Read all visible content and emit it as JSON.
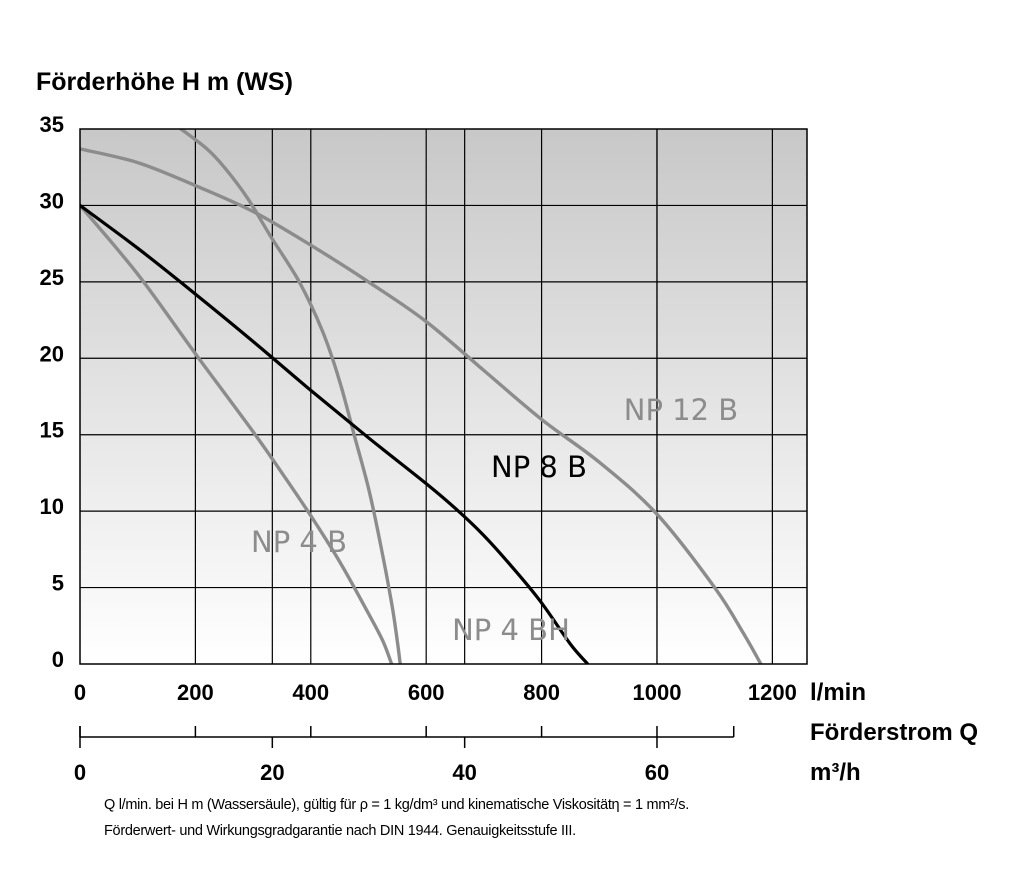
{
  "chart_data": {
    "type": "line",
    "title": "Förderhöhe H m (WS)",
    "ylabel": "Förderhöhe H m (WS)",
    "ylim": [
      0,
      35
    ],
    "yticks": [
      "0",
      "5",
      "10",
      "15",
      "20",
      "25",
      "30",
      "35"
    ],
    "xlim": [
      0,
      1260
    ],
    "xticks": [
      {
        "value": 0,
        "label": "0"
      },
      {
        "value": 200,
        "label": "200"
      },
      {
        "value": 400,
        "label": "400"
      },
      {
        "value": 600,
        "label": "600"
      },
      {
        "value": 800,
        "label": "800"
      },
      {
        "value": 1000,
        "label": "1000"
      },
      {
        "value": 1200,
        "label": "1200"
      }
    ],
    "xunit": "l/min",
    "xlabel": "Förderstrom Q",
    "x2unit": "m³/h",
    "x2ticks": [
      {
        "value": 0,
        "label": "0"
      },
      {
        "value": 20,
        "label": "20"
      },
      {
        "value": 40,
        "label": "40"
      },
      {
        "value": 60,
        "label": "60"
      }
    ],
    "grid": true,
    "series": [
      {
        "name": "NP 4 B",
        "color": "#8c8c8c",
        "x": [
          0,
          100,
          200,
          300,
          350,
          400,
          450,
          500,
          525,
          540
        ],
        "y": [
          30,
          25.5,
          20.3,
          15.2,
          12.5,
          9.7,
          6.7,
          3.3,
          1.5,
          0
        ]
      },
      {
        "name": "NP 4 BH",
        "color": "#8c8c8c",
        "x": [
          175,
          220,
          250,
          290,
          330,
          380,
          420,
          450,
          475,
          500,
          520,
          540,
          550,
          555
        ],
        "y": [
          35,
          33.7,
          32.5,
          30.5,
          28,
          25,
          21.8,
          18.5,
          15,
          11.5,
          8,
          4,
          1.5,
          0
        ]
      },
      {
        "name": "NP 8 B",
        "color": "#000000",
        "x": [
          0,
          100,
          200,
          300,
          400,
          500,
          600,
          650,
          700,
          750,
          800,
          850,
          880
        ],
        "y": [
          30,
          27.2,
          24.2,
          21.1,
          17.9,
          14.8,
          11.8,
          10.2,
          8.4,
          6.3,
          4.0,
          1.3,
          0
        ]
      },
      {
        "name": "NP 12 B",
        "color": "#8c8c8c",
        "x": [
          0,
          100,
          200,
          300,
          400,
          500,
          600,
          700,
          800,
          900,
          1000,
          1100,
          1150,
          1180
        ],
        "y": [
          33.7,
          32.8,
          31.3,
          29.6,
          27.4,
          25.0,
          22.4,
          19.2,
          16.0,
          13.2,
          9.8,
          5.0,
          2.0,
          0
        ]
      }
    ],
    "labels": [
      {
        "series": "NP 4 B",
        "text": "NP 4 B",
        "color": "#8c8c8c"
      },
      {
        "series": "NP 4 BH",
        "text": "NP 4 BH",
        "color": "#8c8c8c"
      },
      {
        "series": "NP 8 B",
        "text": "NP 8 B",
        "color": "#000000"
      },
      {
        "series": "NP 12 B",
        "text": "NP 12 B",
        "color": "#8c8c8c"
      }
    ]
  },
  "footnote": {
    "line1": "Q l/min. bei H m (Wassersäule), gültig für ρ = 1 kg/dm³ und kinematische Viskositätη = 1 mm²/s.",
    "line2": "Förderwert- und Wirkungsgradgarantie nach DIN 1944. Genauigkeitsstufe III."
  }
}
